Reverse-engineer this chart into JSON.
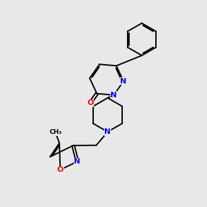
{
  "bg_color": "#e8e8e8",
  "bond_color": "#000000",
  "N_color": "#0000ff",
  "O_color": "#ff0000",
  "font_size_atom": 8.0,
  "line_width": 1.4,
  "figsize": [
    3.0,
    3.0
  ],
  "dpi": 100,
  "xlim": [
    0,
    10
  ],
  "ylim": [
    0,
    10
  ]
}
